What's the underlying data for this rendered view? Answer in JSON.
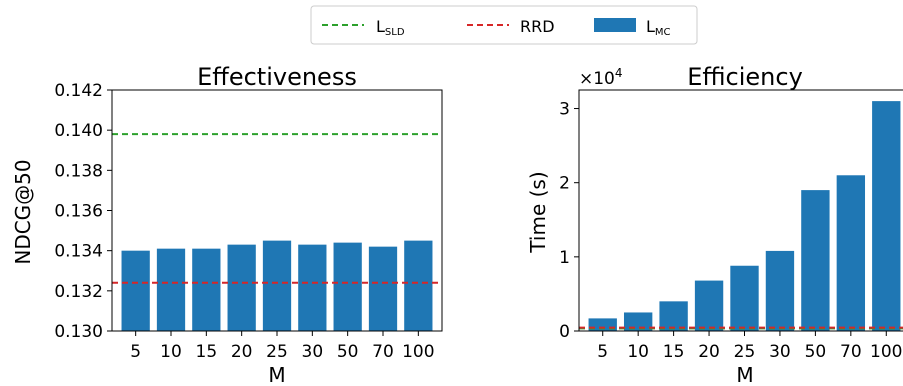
{
  "legend": {
    "sld_main": "L",
    "sld_sub": "SLD",
    "rrd_label": "RRD",
    "mc_main": "L",
    "mc_sub": "MC"
  },
  "colors": {
    "bar": "#1f77b4",
    "sld_line": "#2ca02c",
    "rrd_line": "#d62728"
  },
  "chart_data": [
    {
      "type": "bar",
      "title": "Effectiveness",
      "xlabel": "M",
      "ylabel": "NDCG@50",
      "categories": [
        "5",
        "10",
        "15",
        "20",
        "25",
        "30",
        "50",
        "70",
        "100"
      ],
      "series": [
        {
          "name": "L_MC",
          "values": [
            0.134,
            0.1341,
            0.1341,
            0.1343,
            0.1345,
            0.1343,
            0.1344,
            0.1342,
            0.1345
          ]
        }
      ],
      "hlines": [
        {
          "name": "L_SLD",
          "value": 0.1398,
          "style": "dashed",
          "color": "#2ca02c"
        },
        {
          "name": "RRD",
          "value": 0.1324,
          "style": "dashed",
          "color": "#d62728"
        }
      ],
      "ylim": [
        0.13,
        0.142
      ],
      "yticks": [
        "0.130",
        "0.132",
        "0.134",
        "0.136",
        "0.138",
        "0.140",
        "0.142"
      ]
    },
    {
      "type": "bar",
      "title": "Efficiency",
      "xlabel": "M",
      "ylabel": "Time (s)",
      "offset_label": "×10",
      "offset_exp": "4",
      "categories": [
        "5",
        "10",
        "15",
        "20",
        "25",
        "30",
        "50",
        "70",
        "100"
      ],
      "series": [
        {
          "name": "L_MC",
          "values": [
            1700,
            2500,
            4000,
            6800,
            8800,
            10800,
            19000,
            21000,
            31000
          ]
        }
      ],
      "hlines": [
        {
          "name": "L_SLD",
          "value": 350,
          "style": "dashed",
          "color": "#2ca02c"
        },
        {
          "name": "RRD",
          "value": 450,
          "style": "dashed",
          "color": "#d62728"
        }
      ],
      "ylim": [
        0,
        32500
      ],
      "yticks": [
        "0",
        "1",
        "2",
        "3"
      ],
      "ytick_values": [
        0,
        10000,
        20000,
        30000
      ]
    }
  ]
}
